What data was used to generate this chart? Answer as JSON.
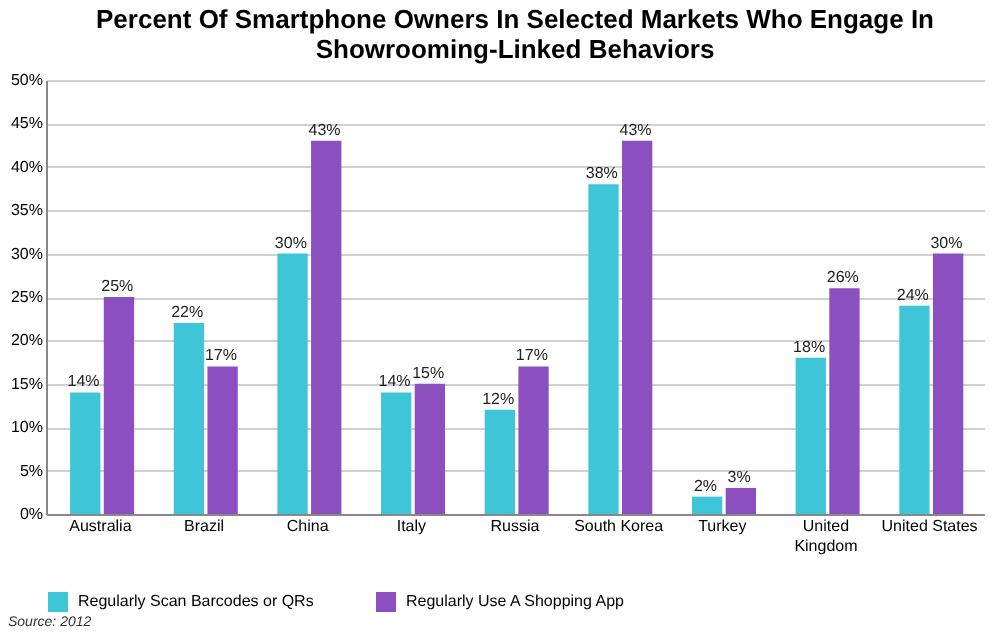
{
  "chart_data": {
    "type": "bar",
    "title": "Percent Of Smartphone Owners In Selected Markets Who Engage In Showrooming-Linked Behaviors",
    "categories": [
      "Australia",
      "Brazil",
      "China",
      "Italy",
      "Russia",
      "South Korea",
      "Turkey",
      "United Kingdom",
      "United States"
    ],
    "series": [
      {
        "name": "Regularly Scan Barcodes or QRs",
        "color": "#3ec6d8",
        "values": [
          14,
          22,
          30,
          14,
          12,
          38,
          2,
          18,
          24
        ],
        "value_labels": [
          "14%",
          "22%",
          "30%",
          "14%",
          "12%",
          "38%",
          "2%",
          "18%",
          "24%"
        ]
      },
      {
        "name": "Regularly Use A Shopping App",
        "color": "#8b4fc0",
        "values": [
          25,
          17,
          43,
          15,
          17,
          43,
          3,
          26,
          30
        ],
        "value_labels": [
          "25%",
          "17%",
          "43%",
          "15%",
          "17%",
          "43%",
          "3%",
          "26%",
          "30%"
        ]
      }
    ],
    "ylim": [
      0,
      50
    ],
    "yticks": [
      {
        "value": 0,
        "label": "0%"
      },
      {
        "value": 5,
        "label": "5%"
      },
      {
        "value": 10,
        "label": "10%"
      },
      {
        "value": 15,
        "label": "15%"
      },
      {
        "value": 20,
        "label": "20%"
      },
      {
        "value": 25,
        "label": "25%"
      },
      {
        "value": 30,
        "label": "30%"
      },
      {
        "value": 35,
        "label": "35%"
      },
      {
        "value": 40,
        "label": "40%"
      },
      {
        "value": 45,
        "label": "45%"
      },
      {
        "value": 50,
        "label": "50%"
      }
    ],
    "grid": "y",
    "legend": "bottom",
    "annotations": [
      "Source: 2012"
    ]
  }
}
